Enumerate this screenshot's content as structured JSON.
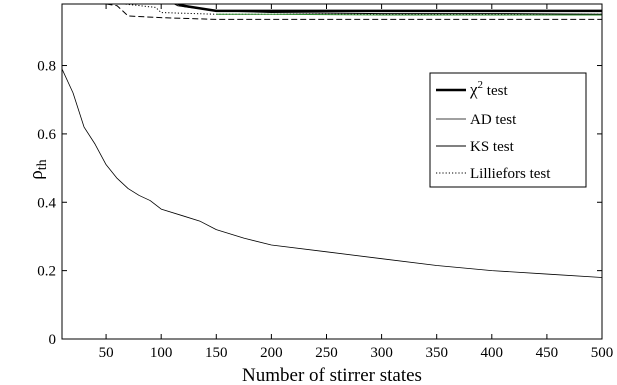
{
  "chart_data": {
    "type": "line",
    "xlabel": "Number of stirrer states",
    "ylabel": {
      "main": "ρ",
      "sub": "th"
    },
    "xlim": [
      10,
      500
    ],
    "ylim": [
      0,
      0.98
    ],
    "xticks": [
      "50",
      "100",
      "150",
      "200",
      "250",
      "300",
      "350",
      "400",
      "450",
      "500"
    ],
    "yticks": [
      "0",
      "0.2",
      "0.4",
      "0.6",
      "0.8"
    ],
    "grid": false,
    "legend_position": "right",
    "series": [
      {
        "name": "χ² test",
        "label_main": "χ",
        "label_sup": "2",
        "label_rest": " test",
        "style": "thick-solid",
        "x": [
          10,
          100,
          120,
          150,
          200,
          300,
          400,
          500
        ],
        "y": [
          1.0,
          1.0,
          0.975,
          0.96,
          0.96,
          0.96,
          0.96,
          0.96
        ]
      },
      {
        "name": "AD test",
        "style": "thin-solid",
        "x": [
          10,
          20,
          30,
          40,
          50,
          60,
          70,
          80,
          90,
          100,
          120,
          135,
          150,
          175,
          200,
          250,
          300,
          350,
          400,
          450,
          500
        ],
        "y": [
          0.79,
          0.72,
          0.62,
          0.57,
          0.51,
          0.47,
          0.44,
          0.42,
          0.405,
          0.38,
          0.36,
          0.345,
          0.32,
          0.295,
          0.275,
          0.255,
          0.235,
          0.215,
          0.2,
          0.19,
          0.18
        ]
      },
      {
        "name": "KS test",
        "style": "solid",
        "x": [
          10,
          100,
          115,
          150,
          200,
          300,
          400,
          500
        ],
        "y": [
          1.0,
          1.0,
          0.975,
          0.96,
          0.955,
          0.952,
          0.952,
          0.95
        ]
      },
      {
        "name": "Lilliefors test",
        "style": "dotted",
        "x": [
          10,
          95,
          100,
          150,
          200,
          300,
          400,
          500
        ],
        "y": [
          1.0,
          0.97,
          0.955,
          0.95,
          0.95,
          0.95,
          0.95,
          0.95
        ]
      },
      {
        "style": "dashed",
        "x": [
          10,
          60,
          70,
          100,
          150,
          200,
          300,
          400,
          500
        ],
        "y": [
          1.0,
          0.975,
          0.945,
          0.94,
          0.935,
          0.935,
          0.935,
          0.935,
          0.935
        ]
      },
      {
        "style": "green-solid",
        "x": [
          150,
          200,
          300,
          400,
          500
        ],
        "y": [
          0.95,
          0.95,
          0.948,
          0.948,
          0.948
        ]
      }
    ],
    "legend": [
      {
        "main": "χ",
        "sup": "2",
        "rest": " test"
      },
      {
        "text": "AD test"
      },
      {
        "text": "KS test"
      },
      {
        "text": "Lilliefors test"
      }
    ],
    "colors": {
      "line": "#000000",
      "green": "#2a8a2a"
    }
  }
}
